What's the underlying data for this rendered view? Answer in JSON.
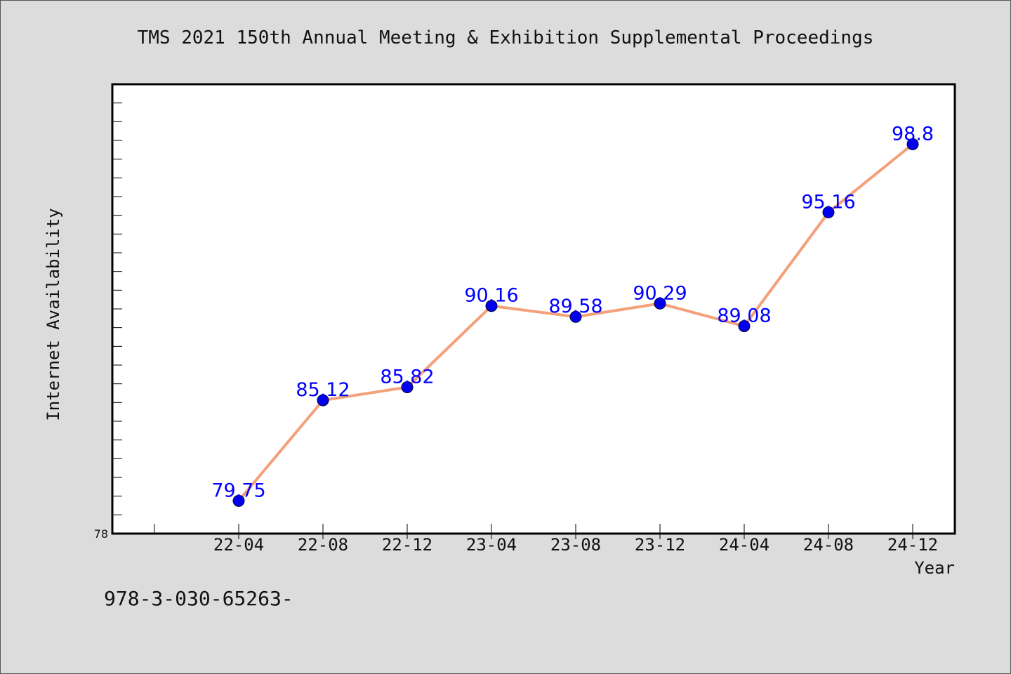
{
  "chart_data": {
    "type": "line",
    "title": "TMS 2021 150th Annual Meeting & Exhibition Supplemental Proceedings",
    "xlabel": "Year",
    "ylabel": "Internet Availability",
    "categories": [
      "22-04",
      "22-08",
      "22-12",
      "23-04",
      "23-08",
      "23-12",
      "24-04",
      "24-08",
      "24-12"
    ],
    "series": [
      {
        "values": [
          79.75,
          85.12,
          85.82,
          90.16,
          89.58,
          90.29,
          89.08,
          95.16,
          98.8
        ]
      }
    ],
    "data_labels": [
      "79.75",
      "85.12",
      "85.82",
      "90.16",
      "89.58",
      "90.29",
      "89.08",
      "95.16",
      "98.8"
    ],
    "ylim": [
      78,
      102
    ],
    "y_tick_labels": [
      "78"
    ],
    "y_minor_tick_step": 1,
    "grid": false,
    "legend": "none",
    "colors": {
      "line": "#f4a07a",
      "marker": "#0000ee",
      "marker_outline": "#000033",
      "data_label": "#0000ff",
      "plot_background": "#ffffff",
      "page_background": "#dcdcdc",
      "axis": "#000000"
    }
  },
  "footer_text": "978-3-030-65263-"
}
